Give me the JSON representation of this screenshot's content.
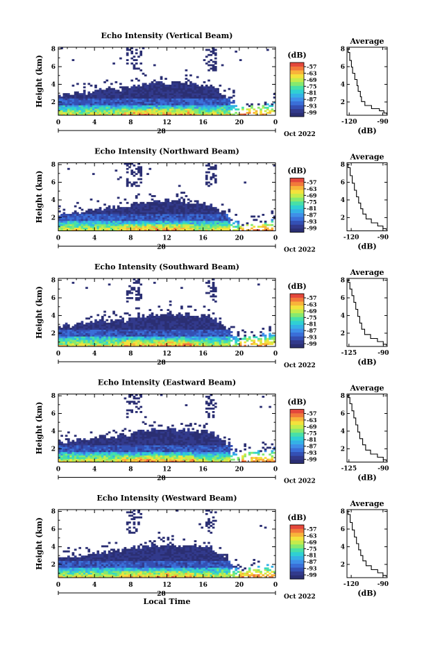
{
  "chart_data": {
    "type": "heatmap",
    "x_label": "Local Time",
    "x_ticks": [
      "0",
      "4",
      "8",
      "12",
      "16",
      "20",
      "0"
    ],
    "x_range": [
      0,
      24
    ],
    "y_label": "Height (km)",
    "y_ticks": [
      "2",
      "4",
      "6",
      "8"
    ],
    "y_range": [
      0.5,
      8.2
    ],
    "date_day": "28",
    "date_month": "Oct 2022",
    "colorbar": {
      "unit": "(dB)",
      "ticks": [
        "-57",
        "-63",
        "-69",
        "-75",
        "-81",
        "-87",
        "-93",
        "-99"
      ],
      "colors": [
        "#2b2f73",
        "#323a8c",
        "#3450b4",
        "#3a6fd8",
        "#3f8fe8",
        "#34b1e6",
        "#2fd0d3",
        "#47e0a8",
        "#86e96f",
        "#c4ec4c",
        "#f3e23c",
        "#f8b43a",
        "#f2793a",
        "#e3473b"
      ]
    },
    "average_panel": {
      "title": "Average",
      "x_label": "(dB)",
      "y_ticks": [
        "2",
        "4",
        "6",
        "8"
      ],
      "y_range": [
        0.5,
        8.2
      ]
    },
    "panels": [
      {
        "title": "Echo Intensity (Vertical Beam)",
        "avg_x_ticks": [
          "-120",
          "-90"
        ],
        "avg_x_range": [
          -122,
          -86
        ],
        "avg_profile": [
          [
            -86.5,
            0.6
          ],
          [
            -89,
            0.9
          ],
          [
            -93,
            1.1
          ],
          [
            -100,
            1.4
          ],
          [
            -106,
            1.8
          ],
          [
            -109,
            2.3
          ],
          [
            -110,
            2.9
          ],
          [
            -112,
            3.5
          ],
          [
            -113,
            4.2
          ],
          [
            -115,
            4.9
          ],
          [
            -117,
            5.6
          ],
          [
            -118,
            6.3
          ],
          [
            -119.5,
            7.1
          ],
          [
            -121,
            8.1
          ]
        ]
      },
      {
        "title": "Echo Intensity (Northward Beam)",
        "avg_x_ticks": [
          "-120",
          "-90"
        ],
        "avg_x_range": [
          -124,
          -86
        ],
        "avg_profile": [
          [
            -87,
            0.6
          ],
          [
            -90,
            0.9
          ],
          [
            -95,
            1.2
          ],
          [
            -101,
            1.6
          ],
          [
            -106,
            2.1
          ],
          [
            -109,
            2.7
          ],
          [
            -111,
            3.3
          ],
          [
            -113,
            4.0
          ],
          [
            -115,
            4.7
          ],
          [
            -117,
            5.5
          ],
          [
            -119,
            6.3
          ],
          [
            -121,
            7.2
          ],
          [
            -123,
            8.1
          ]
        ]
      },
      {
        "title": "Echo Intensity (Southward Beam)",
        "avg_x_ticks": [
          "-125",
          "-90"
        ],
        "avg_x_range": [
          -127,
          -86
        ],
        "avg_profile": [
          [
            -87,
            0.6
          ],
          [
            -90,
            0.9
          ],
          [
            -96,
            1.2
          ],
          [
            -103,
            1.6
          ],
          [
            -109,
            2.1
          ],
          [
            -112,
            2.8
          ],
          [
            -114,
            3.5
          ],
          [
            -116,
            4.3
          ],
          [
            -118,
            5.1
          ],
          [
            -120,
            5.9
          ],
          [
            -122,
            6.6
          ],
          [
            -124,
            7.4
          ],
          [
            -126,
            8.1
          ]
        ]
      },
      {
        "title": "Echo Intensity (Eastward Beam)",
        "avg_x_ticks": [
          "-125",
          "-90"
        ],
        "avg_x_range": [
          -127,
          -86
        ],
        "avg_profile": [
          [
            -87,
            0.6
          ],
          [
            -90,
            0.9
          ],
          [
            -96,
            1.2
          ],
          [
            -103,
            1.6
          ],
          [
            -108,
            2.1
          ],
          [
            -111,
            2.8
          ],
          [
            -114,
            3.5
          ],
          [
            -116,
            4.3
          ],
          [
            -118,
            5.1
          ],
          [
            -120,
            5.9
          ],
          [
            -122,
            6.7
          ],
          [
            -124,
            7.5
          ],
          [
            -126,
            8.1
          ]
        ]
      },
      {
        "title": "Echo Intensity (Westward Beam)",
        "avg_x_ticks": [
          "-120",
          "-90"
        ],
        "avg_x_range": [
          -124,
          -86
        ],
        "avg_profile": [
          [
            -87,
            0.6
          ],
          [
            -90,
            0.9
          ],
          [
            -95,
            1.2
          ],
          [
            -101,
            1.6
          ],
          [
            -106,
            2.1
          ],
          [
            -109,
            2.7
          ],
          [
            -111,
            3.3
          ],
          [
            -113,
            4.0
          ],
          [
            -115,
            4.7
          ],
          [
            -117,
            5.5
          ],
          [
            -119,
            6.3
          ],
          [
            -121,
            7.2
          ],
          [
            -123,
            8.1
          ]
        ]
      }
    ]
  }
}
